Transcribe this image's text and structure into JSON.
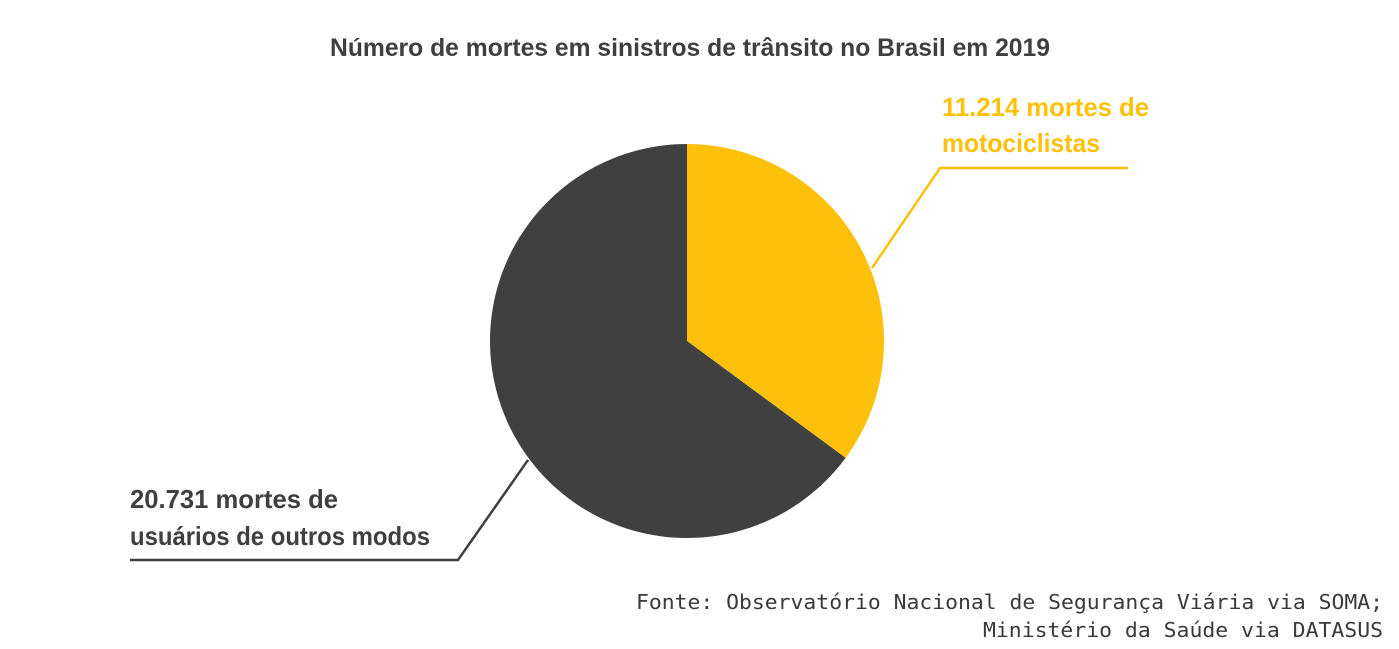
{
  "chart_data": {
    "type": "pie",
    "title": "Número de mortes em sinistros de trânsito no Brasil em 2019",
    "slices": [
      {
        "label_lines": [
          "11.214 mortes de",
          "motociclistas"
        ],
        "value": 11214,
        "color": "#FDC10B"
      },
      {
        "label_lines": [
          "20.731 mortes de",
          "usuários de outros modos"
        ],
        "value": 20731,
        "color": "#404040"
      }
    ],
    "start_angle": "12 o'clock",
    "direction": "clockwise",
    "source_lines": [
      "Fonte: Observatório Nacional de Segurança Viária via SOMA;",
      "Ministério da Saúde via DATASUS"
    ]
  }
}
